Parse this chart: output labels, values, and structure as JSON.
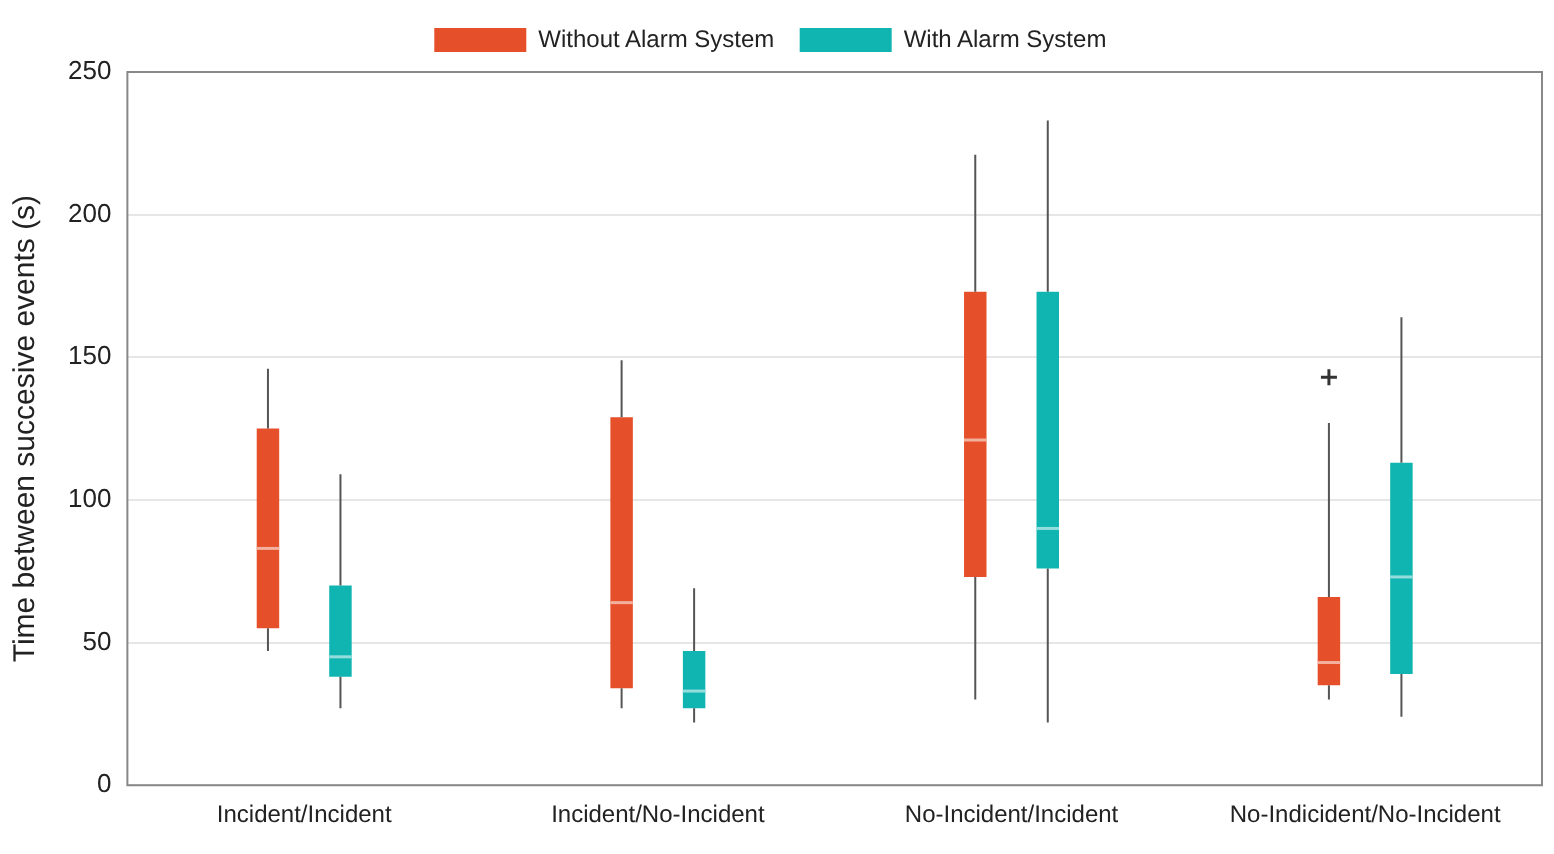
{
  "chart_data": {
    "type": "box",
    "ylabel": "Time between succesive events (s)",
    "categories": [
      "Incident/Incident",
      "Incident/No-Incident",
      "No-Incident/Incident",
      "No-Indicident/No-Incident"
    ],
    "ylim": [
      0,
      250
    ],
    "yticks": [
      0,
      50,
      100,
      150,
      200,
      250
    ],
    "grid": "y",
    "legend": "top",
    "series": [
      {
        "name": "Without Alarm System",
        "color": "#e5502a",
        "boxes": [
          {
            "low": 47,
            "q1": 55,
            "median": 83,
            "q3": 125,
            "high": 146
          },
          {
            "low": 27,
            "q1": 34,
            "median": 64,
            "q3": 129,
            "high": 149
          },
          {
            "low": 30,
            "q1": 73,
            "median": 121,
            "q3": 173,
            "high": 221
          },
          {
            "low": 30,
            "q1": 35,
            "median": 43,
            "q3": 66,
            "high": 127,
            "outliers": [
              143
            ]
          }
        ]
      },
      {
        "name": "With Alarm System",
        "color": "#10b5b2",
        "boxes": [
          {
            "low": 27,
            "q1": 38,
            "median": 45,
            "q3": 70,
            "high": 109
          },
          {
            "low": 22,
            "q1": 27,
            "median": 33,
            "q3": 47,
            "high": 69
          },
          {
            "low": 22,
            "q1": 76,
            "median": 90,
            "q3": 173,
            "high": 233
          },
          {
            "low": 24,
            "q1": 39,
            "median": 73,
            "q3": 113,
            "high": 164
          }
        ]
      }
    ]
  }
}
